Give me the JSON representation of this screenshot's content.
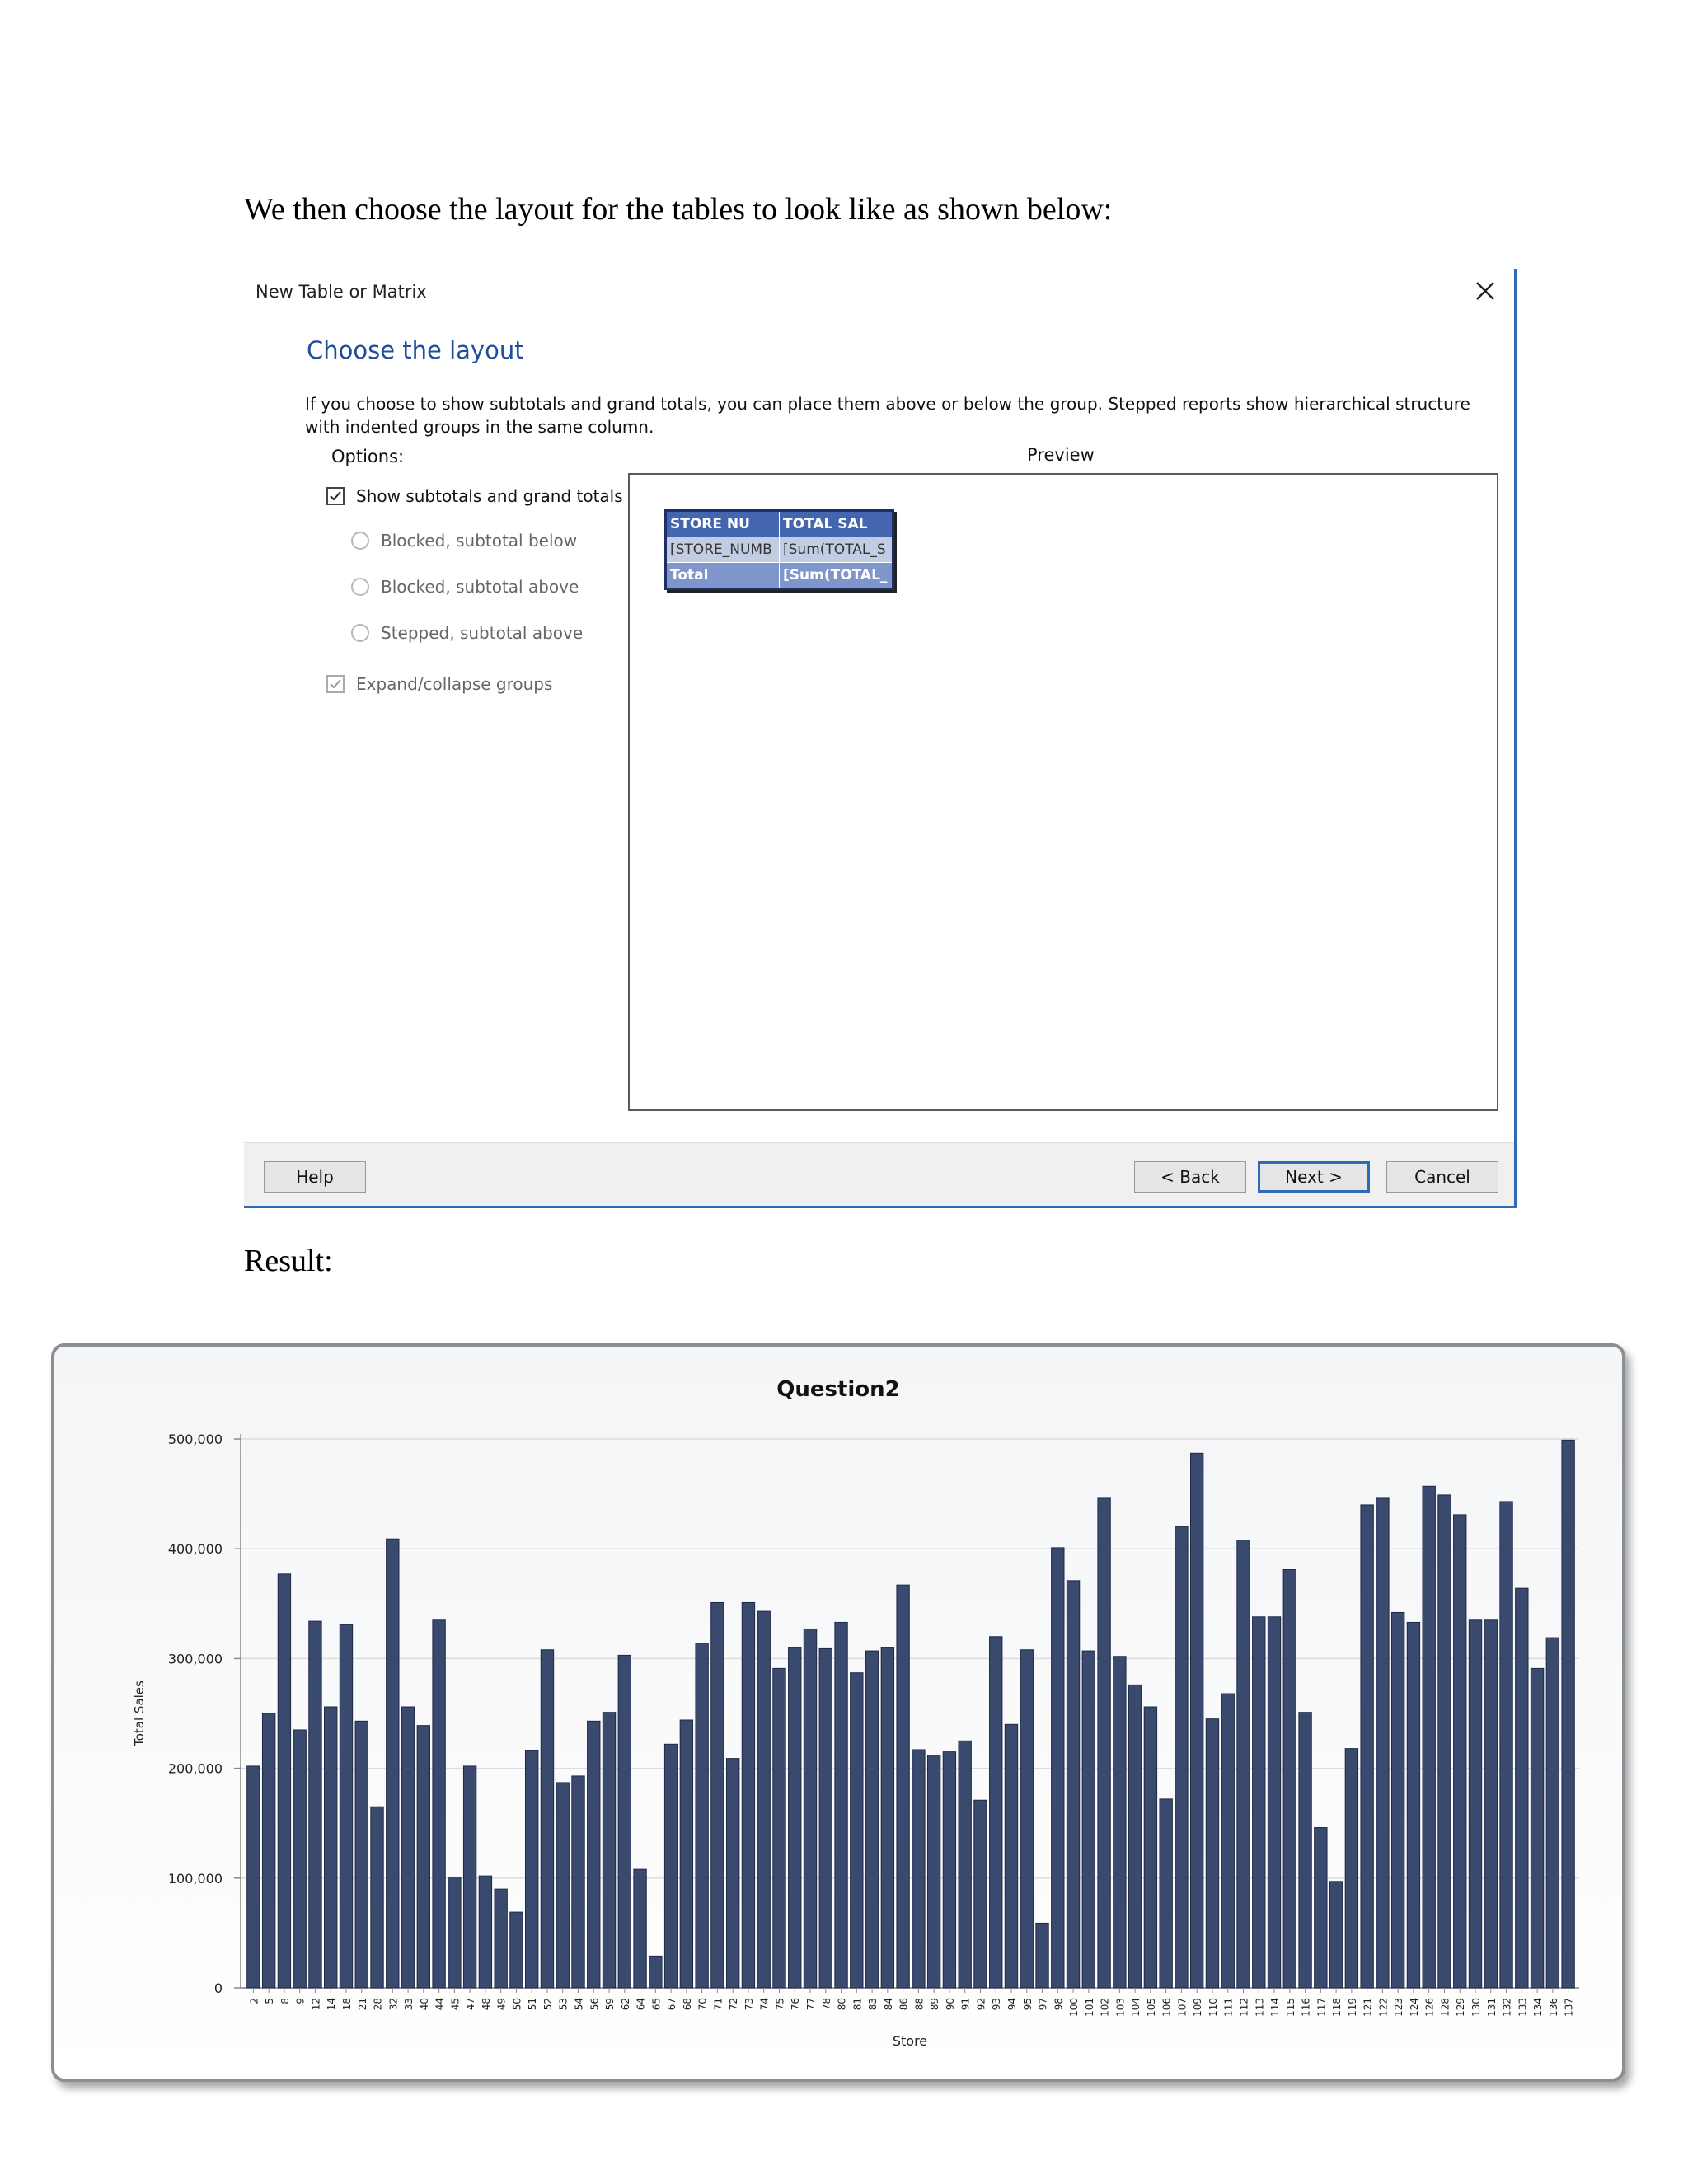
{
  "document": {
    "intro_text": "We then choose the layout for the tables to look like as shown below:",
    "result_label": "Result:"
  },
  "dialog": {
    "title": "New Table or Matrix",
    "heading": "Choose the layout",
    "description": "If you choose to show subtotals and grand totals, you can place them above or below the group. Stepped reports show hierarchical structure with indented groups in the same column.",
    "options_label": "Options:",
    "preview_label": "Preview",
    "options": {
      "show_totals": {
        "label": "Show subtotals and grand totals",
        "checked": true
      },
      "blocked_below": {
        "label": "Blocked, subtotal below",
        "selected": false
      },
      "blocked_above": {
        "label": "Blocked, subtotal above",
        "selected": false
      },
      "stepped_above": {
        "label": "Stepped, subtotal above",
        "selected": false
      },
      "expand_collapse": {
        "label": "Expand/collapse groups",
        "checked": true
      }
    },
    "preview_table": {
      "header": [
        "STORE NU",
        "TOTAL SAL"
      ],
      "detail": [
        "[STORE_NUMB",
        "[Sum(TOTAL_S"
      ],
      "total": [
        "Total",
        "[Sum(TOTAL_"
      ]
    },
    "buttons": {
      "help": "Help",
      "back": "< Back",
      "next": "Next >",
      "cancel": "Cancel"
    }
  },
  "chart_data": {
    "type": "bar",
    "title": "Question2",
    "xlabel": "Store",
    "ylabel": "Total Sales",
    "ylim": [
      0,
      500000
    ],
    "yticks": [
      "0",
      "100,000",
      "200,000",
      "300,000",
      "400,000",
      "500,000"
    ],
    "grid": true,
    "bar_color": "#3a4a6e",
    "categories": [
      "2",
      "5",
      "8",
      "9",
      "12",
      "14",
      "18",
      "21",
      "28",
      "32",
      "33",
      "40",
      "44",
      "45",
      "47",
      "48",
      "49",
      "50",
      "51",
      "52",
      "53",
      "54",
      "56",
      "59",
      "62",
      "64",
      "65",
      "67",
      "68",
      "70",
      "71",
      "72",
      "73",
      "74",
      "75",
      "76",
      "77",
      "78",
      "80",
      "81",
      "83",
      "84",
      "86",
      "88",
      "89",
      "90",
      "91",
      "92",
      "93",
      "94",
      "95",
      "97",
      "98",
      "100",
      "101",
      "102",
      "103",
      "104",
      "105",
      "106",
      "107",
      "109",
      "110",
      "111",
      "112",
      "113",
      "114",
      "115",
      "116",
      "117",
      "118",
      "119",
      "121",
      "122",
      "123",
      "124",
      "126",
      "128",
      "129",
      "130",
      "131",
      "132",
      "133",
      "134",
      "136",
      "137"
    ],
    "values": [
      202000,
      250000,
      377000,
      235000,
      334000,
      256000,
      331000,
      243000,
      165000,
      409000,
      256000,
      239000,
      335000,
      101000,
      202000,
      102000,
      90000,
      69000,
      216000,
      308000,
      187000,
      193000,
      243000,
      251000,
      303000,
      108000,
      29000,
      222000,
      244000,
      314000,
      351000,
      209000,
      351000,
      343000,
      291000,
      310000,
      327000,
      309000,
      333000,
      287000,
      307000,
      310000,
      367000,
      217000,
      212000,
      215000,
      225000,
      171000,
      320000,
      240000,
      308000,
      59000,
      401000,
      371000,
      307000,
      446000,
      302000,
      276000,
      256000,
      172000,
      420000,
      487000,
      245000,
      268000,
      408000,
      338000,
      338000,
      381000,
      251000,
      146000,
      97000,
      218000,
      440000,
      446000,
      342000,
      333000,
      457000,
      449000,
      431000,
      335000,
      335000,
      443000,
      364000,
      291000,
      319000,
      499000
    ]
  }
}
